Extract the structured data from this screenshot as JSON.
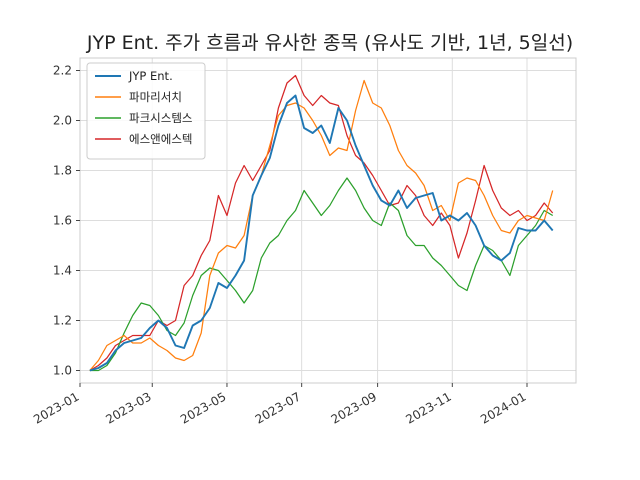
{
  "chart_data": {
    "type": "line",
    "title": "JYP Ent. 주가 흐름과 유사한 종목 (유사도 기반, 1년, 5일선)",
    "xlabel": "",
    "ylabel": "",
    "x_range": [
      "2023-01-01",
      "2024-02-10"
    ],
    "ylim": [
      0.95,
      2.25
    ],
    "y_ticks": [
      1.0,
      1.2,
      1.4,
      1.6,
      1.8,
      2.0,
      2.2
    ],
    "y_tick_labels": [
      "1.0",
      "1.2",
      "1.4",
      "1.6",
      "1.8",
      "2.0",
      "2.2"
    ],
    "x_ticks": [
      "2023-01-01",
      "2023-03-01",
      "2023-05-01",
      "2023-07-01",
      "2023-09-01",
      "2023-11-01",
      "2024-01-01"
    ],
    "x_tick_labels": [
      "2023-01",
      "2023-03",
      "2023-05",
      "2023-07",
      "2023-09",
      "2023-11",
      "2024-01"
    ],
    "grid": true,
    "legend_position": "top-left",
    "series": [
      {
        "name": "JYP Ent.",
        "color": "#1f77b4",
        "points": [
          [
            "2023-01-09",
            1.0
          ],
          [
            "2023-01-16",
            1.01
          ],
          [
            "2023-01-23",
            1.03
          ],
          [
            "2023-01-30",
            1.08
          ],
          [
            "2023-02-06",
            1.11
          ],
          [
            "2023-02-13",
            1.12
          ],
          [
            "2023-02-20",
            1.13
          ],
          [
            "2023-02-27",
            1.17
          ],
          [
            "2023-03-06",
            1.2
          ],
          [
            "2023-03-13",
            1.17
          ],
          [
            "2023-03-20",
            1.1
          ],
          [
            "2023-03-27",
            1.09
          ],
          [
            "2023-04-03",
            1.18
          ],
          [
            "2023-04-10",
            1.2
          ],
          [
            "2023-04-17",
            1.25
          ],
          [
            "2023-04-24",
            1.35
          ],
          [
            "2023-05-01",
            1.33
          ],
          [
            "2023-05-08",
            1.38
          ],
          [
            "2023-05-15",
            1.44
          ],
          [
            "2023-05-22",
            1.7
          ],
          [
            "2023-05-29",
            1.78
          ],
          [
            "2023-06-05",
            1.85
          ],
          [
            "2023-06-12",
            1.98
          ],
          [
            "2023-06-19",
            2.07
          ],
          [
            "2023-06-26",
            2.1
          ],
          [
            "2023-07-03",
            1.97
          ],
          [
            "2023-07-10",
            1.95
          ],
          [
            "2023-07-17",
            1.98
          ],
          [
            "2023-07-24",
            1.91
          ],
          [
            "2023-07-31",
            2.05
          ],
          [
            "2023-08-07",
            2.0
          ],
          [
            "2023-08-14",
            1.9
          ],
          [
            "2023-08-21",
            1.82
          ],
          [
            "2023-08-28",
            1.74
          ],
          [
            "2023-09-04",
            1.68
          ],
          [
            "2023-09-11",
            1.66
          ],
          [
            "2023-09-18",
            1.72
          ],
          [
            "2023-09-25",
            1.65
          ],
          [
            "2023-10-02",
            1.69
          ],
          [
            "2023-10-09",
            1.7
          ],
          [
            "2023-10-16",
            1.71
          ],
          [
            "2023-10-23",
            1.6
          ],
          [
            "2023-10-30",
            1.62
          ],
          [
            "2023-11-06",
            1.6
          ],
          [
            "2023-11-13",
            1.63
          ],
          [
            "2023-11-20",
            1.58
          ],
          [
            "2023-11-27",
            1.5
          ],
          [
            "2023-12-04",
            1.46
          ],
          [
            "2023-12-11",
            1.44
          ],
          [
            "2023-12-18",
            1.47
          ],
          [
            "2023-12-25",
            1.57
          ],
          [
            "2024-01-01",
            1.56
          ],
          [
            "2024-01-08",
            1.56
          ],
          [
            "2024-01-15",
            1.6
          ],
          [
            "2024-01-22",
            1.56
          ]
        ]
      },
      {
        "name": "파마리서치",
        "color": "#ff7f0e",
        "points": [
          [
            "2023-01-09",
            1.0
          ],
          [
            "2023-01-16",
            1.04
          ],
          [
            "2023-01-23",
            1.1
          ],
          [
            "2023-01-30",
            1.12
          ],
          [
            "2023-02-06",
            1.14
          ],
          [
            "2023-02-13",
            1.11
          ],
          [
            "2023-02-20",
            1.11
          ],
          [
            "2023-02-27",
            1.13
          ],
          [
            "2023-03-06",
            1.1
          ],
          [
            "2023-03-13",
            1.08
          ],
          [
            "2023-03-20",
            1.05
          ],
          [
            "2023-03-27",
            1.04
          ],
          [
            "2023-04-03",
            1.06
          ],
          [
            "2023-04-10",
            1.15
          ],
          [
            "2023-04-17",
            1.38
          ],
          [
            "2023-04-24",
            1.47
          ],
          [
            "2023-05-01",
            1.5
          ],
          [
            "2023-05-08",
            1.49
          ],
          [
            "2023-05-15",
            1.54
          ],
          [
            "2023-05-22",
            1.7
          ],
          [
            "2023-05-29",
            1.78
          ],
          [
            "2023-06-05",
            1.9
          ],
          [
            "2023-06-12",
            2.02
          ],
          [
            "2023-06-19",
            2.06
          ],
          [
            "2023-06-26",
            2.07
          ],
          [
            "2023-07-03",
            2.05
          ],
          [
            "2023-07-10",
            2.0
          ],
          [
            "2023-07-17",
            1.94
          ],
          [
            "2023-07-24",
            1.86
          ],
          [
            "2023-07-31",
            1.89
          ],
          [
            "2023-08-07",
            1.88
          ],
          [
            "2023-08-14",
            2.04
          ],
          [
            "2023-08-21",
            2.16
          ],
          [
            "2023-08-28",
            2.07
          ],
          [
            "2023-09-04",
            2.05
          ],
          [
            "2023-09-11",
            1.98
          ],
          [
            "2023-09-18",
            1.88
          ],
          [
            "2023-09-25",
            1.82
          ],
          [
            "2023-10-02",
            1.79
          ],
          [
            "2023-10-09",
            1.74
          ],
          [
            "2023-10-16",
            1.64
          ],
          [
            "2023-10-23",
            1.66
          ],
          [
            "2023-10-30",
            1.6
          ],
          [
            "2023-11-06",
            1.75
          ],
          [
            "2023-11-13",
            1.77
          ],
          [
            "2023-11-20",
            1.76
          ],
          [
            "2023-11-27",
            1.7
          ],
          [
            "2023-12-04",
            1.62
          ],
          [
            "2023-12-11",
            1.56
          ],
          [
            "2023-12-18",
            1.55
          ],
          [
            "2023-12-25",
            1.6
          ],
          [
            "2024-01-01",
            1.62
          ],
          [
            "2024-01-08",
            1.61
          ],
          [
            "2024-01-15",
            1.6
          ],
          [
            "2024-01-22",
            1.72
          ]
        ]
      },
      {
        "name": "파크시스템스",
        "color": "#2ca02c",
        "points": [
          [
            "2023-01-09",
            1.0
          ],
          [
            "2023-01-16",
            1.0
          ],
          [
            "2023-01-23",
            1.02
          ],
          [
            "2023-01-30",
            1.07
          ],
          [
            "2023-02-06",
            1.15
          ],
          [
            "2023-02-13",
            1.22
          ],
          [
            "2023-02-20",
            1.27
          ],
          [
            "2023-02-27",
            1.26
          ],
          [
            "2023-03-06",
            1.22
          ],
          [
            "2023-03-13",
            1.16
          ],
          [
            "2023-03-20",
            1.14
          ],
          [
            "2023-03-27",
            1.19
          ],
          [
            "2023-04-03",
            1.3
          ],
          [
            "2023-04-10",
            1.38
          ],
          [
            "2023-04-17",
            1.41
          ],
          [
            "2023-04-24",
            1.4
          ],
          [
            "2023-05-01",
            1.36
          ],
          [
            "2023-05-08",
            1.32
          ],
          [
            "2023-05-15",
            1.27
          ],
          [
            "2023-05-22",
            1.32
          ],
          [
            "2023-05-29",
            1.45
          ],
          [
            "2023-06-05",
            1.51
          ],
          [
            "2023-06-12",
            1.54
          ],
          [
            "2023-06-19",
            1.6
          ],
          [
            "2023-06-26",
            1.64
          ],
          [
            "2023-07-03",
            1.72
          ],
          [
            "2023-07-10",
            1.67
          ],
          [
            "2023-07-17",
            1.62
          ],
          [
            "2023-07-24",
            1.66
          ],
          [
            "2023-07-31",
            1.72
          ],
          [
            "2023-08-07",
            1.77
          ],
          [
            "2023-08-14",
            1.72
          ],
          [
            "2023-08-21",
            1.65
          ],
          [
            "2023-08-28",
            1.6
          ],
          [
            "2023-09-04",
            1.58
          ],
          [
            "2023-09-11",
            1.67
          ],
          [
            "2023-09-18",
            1.64
          ],
          [
            "2023-09-25",
            1.54
          ],
          [
            "2023-10-02",
            1.5
          ],
          [
            "2023-10-09",
            1.5
          ],
          [
            "2023-10-16",
            1.45
          ],
          [
            "2023-10-23",
            1.42
          ],
          [
            "2023-10-30",
            1.38
          ],
          [
            "2023-11-06",
            1.34
          ],
          [
            "2023-11-13",
            1.32
          ],
          [
            "2023-11-20",
            1.42
          ],
          [
            "2023-11-27",
            1.5
          ],
          [
            "2023-12-04",
            1.48
          ],
          [
            "2023-12-11",
            1.44
          ],
          [
            "2023-12-18",
            1.38
          ],
          [
            "2023-12-25",
            1.5
          ],
          [
            "2024-01-01",
            1.54
          ],
          [
            "2024-01-08",
            1.58
          ],
          [
            "2024-01-15",
            1.64
          ],
          [
            "2024-01-22",
            1.62
          ]
        ]
      },
      {
        "name": "에스앤에스텍",
        "color": "#d62728",
        "points": [
          [
            "2023-01-09",
            1.0
          ],
          [
            "2023-01-16",
            1.02
          ],
          [
            "2023-01-23",
            1.05
          ],
          [
            "2023-01-30",
            1.1
          ],
          [
            "2023-02-06",
            1.12
          ],
          [
            "2023-02-13",
            1.14
          ],
          [
            "2023-02-20",
            1.14
          ],
          [
            "2023-02-27",
            1.14
          ],
          [
            "2023-03-06",
            1.2
          ],
          [
            "2023-03-13",
            1.18
          ],
          [
            "2023-03-20",
            1.2
          ],
          [
            "2023-03-27",
            1.34
          ],
          [
            "2023-04-03",
            1.38
          ],
          [
            "2023-04-10",
            1.46
          ],
          [
            "2023-04-17",
            1.52
          ],
          [
            "2023-04-24",
            1.7
          ],
          [
            "2023-05-01",
            1.62
          ],
          [
            "2023-05-08",
            1.75
          ],
          [
            "2023-05-15",
            1.82
          ],
          [
            "2023-05-22",
            1.76
          ],
          [
            "2023-05-29",
            1.82
          ],
          [
            "2023-06-05",
            1.88
          ],
          [
            "2023-06-12",
            2.05
          ],
          [
            "2023-06-19",
            2.15
          ],
          [
            "2023-06-26",
            2.18
          ],
          [
            "2023-07-03",
            2.1
          ],
          [
            "2023-07-10",
            2.06
          ],
          [
            "2023-07-17",
            2.1
          ],
          [
            "2023-07-24",
            2.07
          ],
          [
            "2023-07-31",
            2.06
          ],
          [
            "2023-08-07",
            1.94
          ],
          [
            "2023-08-14",
            1.86
          ],
          [
            "2023-08-21",
            1.83
          ],
          [
            "2023-08-28",
            1.78
          ],
          [
            "2023-09-04",
            1.72
          ],
          [
            "2023-09-11",
            1.66
          ],
          [
            "2023-09-18",
            1.67
          ],
          [
            "2023-09-25",
            1.74
          ],
          [
            "2023-10-02",
            1.7
          ],
          [
            "2023-10-09",
            1.62
          ],
          [
            "2023-10-16",
            1.58
          ],
          [
            "2023-10-23",
            1.63
          ],
          [
            "2023-10-30",
            1.58
          ],
          [
            "2023-11-06",
            1.45
          ],
          [
            "2023-11-13",
            1.55
          ],
          [
            "2023-11-20",
            1.68
          ],
          [
            "2023-11-27",
            1.82
          ],
          [
            "2023-12-04",
            1.72
          ],
          [
            "2023-12-11",
            1.65
          ],
          [
            "2023-12-18",
            1.62
          ],
          [
            "2023-12-25",
            1.64
          ],
          [
            "2024-01-01",
            1.6
          ],
          [
            "2024-01-08",
            1.62
          ],
          [
            "2024-01-15",
            1.67
          ],
          [
            "2024-01-22",
            1.63
          ]
        ]
      }
    ]
  }
}
